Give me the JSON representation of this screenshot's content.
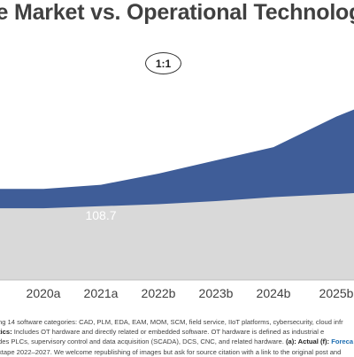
{
  "title": "re Market vs. Operational Technolog",
  "badge": "1:1",
  "chart_data": {
    "type": "area",
    "title": "re Market vs. Operational Technolog",
    "categories": [
      "2020a",
      "2021a",
      "2022b",
      "2023b",
      "2024b",
      "2025b"
    ],
    "xlabel": "",
    "ylabel": "",
    "data_labels": [
      {
        "category": "2021a",
        "value": "108.7"
      }
    ],
    "series": [
      {
        "values": [
          86,
          88,
          90,
          93,
          97,
          100
        ]
      },
      {
        "values": [
          105,
          109,
          120,
          133,
          146,
          176
        ]
      }
    ],
    "colors": {
      "top_series": "#3f5d98",
      "bottom_series": "#d9d9d9",
      "axis": "#bfbfbf"
    },
    "grid": false
  },
  "notes": {
    "line1": "ng 14 software categories: CAD, PLM, EDA, EAM, MOM, SCM, field service, IIoT platforms, cybersecurity, cloud infr",
    "line2_label": "tics:",
    "line2": " Includes OT hardware and directly related or embedded software. OT hardware is defined as industrial e",
    "line3a": "des PLCs, supervisory control and data acquisition (SCADA), DCS, CNC, and related hardware. ",
    "line3_actual": "(a): Actual (f):",
    "line3_forecast": " Foreca",
    "line4": "ktape 2022–2027. We welcome republishing of images but ask for source citation with a link to the original post and"
  }
}
